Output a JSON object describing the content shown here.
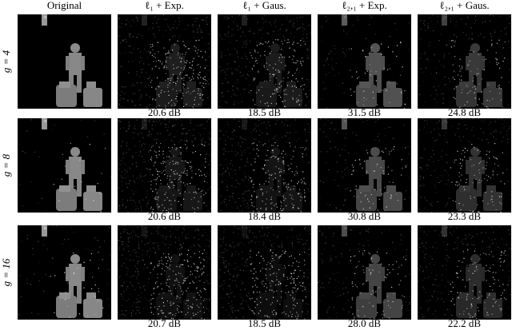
{
  "columns": [
    "Original",
    "ℓ₁ + Exp.",
    "ℓ₁ + Gaus.",
    "ℓ₂,₁ + Exp.",
    "ℓ₂,₁ + Gaus."
  ],
  "rows": [
    {
      "label": "g = 4",
      "psnr": [
        "20.6 dB",
        "18.5 dB",
        "31.5 dB",
        "24.8 dB"
      ]
    },
    {
      "label": "g = 8",
      "psnr": [
        "20.6 dB",
        "18.4 dB",
        "30.8 dB",
        "23.3 dB"
      ]
    },
    {
      "label": "g = 16",
      "psnr": [
        "20.7 dB",
        "18.5 dB",
        "28.0 dB",
        "22.2 dB"
      ]
    }
  ]
}
